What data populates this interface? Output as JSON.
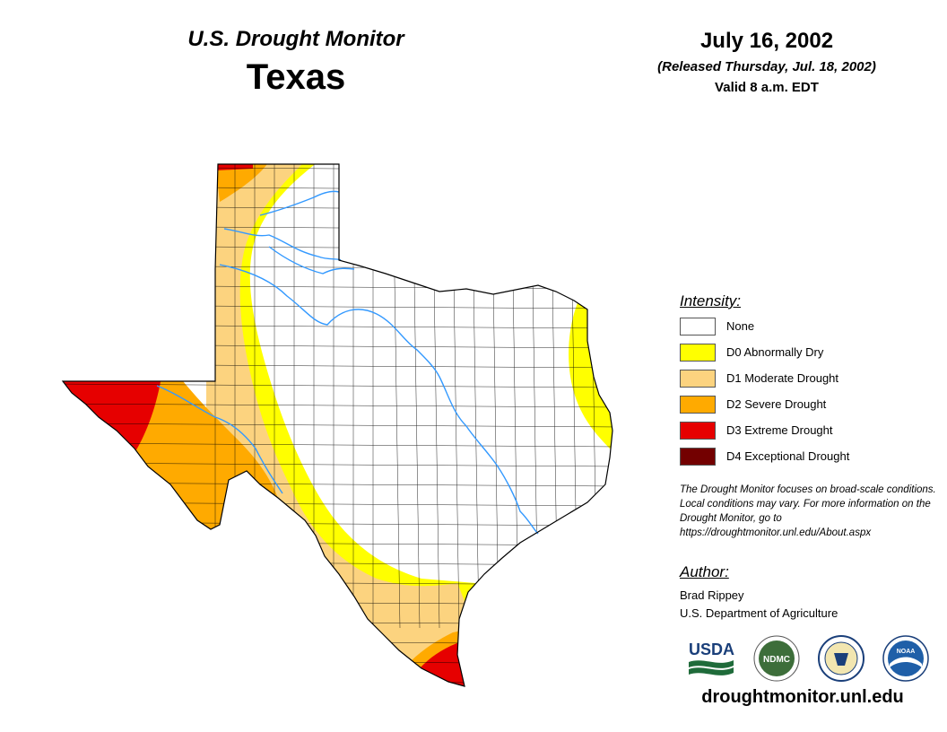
{
  "header": {
    "monitor_title": "U.S. Drought Monitor",
    "region": "Texas",
    "date": "July 16, 2002",
    "released": "(Released Thursday, Jul. 18, 2002)",
    "valid": "Valid 8 a.m. EDT"
  },
  "legend": {
    "title": "Intensity:",
    "items": [
      {
        "label": "None",
        "color": "#ffffff"
      },
      {
        "label": "D0 Abnormally Dry",
        "color": "#ffff00"
      },
      {
        "label": "D1 Moderate Drought",
        "color": "#fcd37f"
      },
      {
        "label": "D2 Severe Drought",
        "color": "#ffaa00"
      },
      {
        "label": "D3 Extreme Drought",
        "color": "#e60000"
      },
      {
        "label": "D4 Exceptional Drought",
        "color": "#730000"
      }
    ]
  },
  "note": "The Drought Monitor focuses on broad-scale conditions. Local conditions may vary. For more information on the Drought Monitor, go to https://droughtmonitor.unl.edu/About.aspx",
  "author": {
    "title": "Author:",
    "name": "Brad Rippey",
    "organization": "U.S. Department of Agriculture"
  },
  "logos": {
    "usda": "USDA",
    "ndmc": "NDMC",
    "commerce": "commerce-seal-icon",
    "noaa": "NOAA"
  },
  "footer": {
    "url": "droughtmonitor.unl.edu"
  },
  "map": {
    "river_color": "#3399ff",
    "drought_areas": [
      {
        "region": "Panhandle west edge",
        "category": "D1 Moderate Drought"
      },
      {
        "region": "Northwest panhandle corner",
        "category": "D2 Severe Drought"
      },
      {
        "region": "Panhandle north tip",
        "category": "D3 Extreme Drought"
      },
      {
        "region": "Far West Texas (El Paso)",
        "category": "D3 Extreme Drought"
      },
      {
        "region": "Trans-Pecos / Big Bend",
        "category": "D2 Severe Drought"
      },
      {
        "region": "West-central arc",
        "category": "D0 Abnormally Dry"
      },
      {
        "region": "South Texas / Rio Grande",
        "category": "D1 Moderate Drought"
      },
      {
        "region": "Lower Rio Grande Valley",
        "category": "D3 Extreme Drought"
      },
      {
        "region": "East Texas border",
        "category": "D0 Abnormally Dry"
      }
    ]
  }
}
